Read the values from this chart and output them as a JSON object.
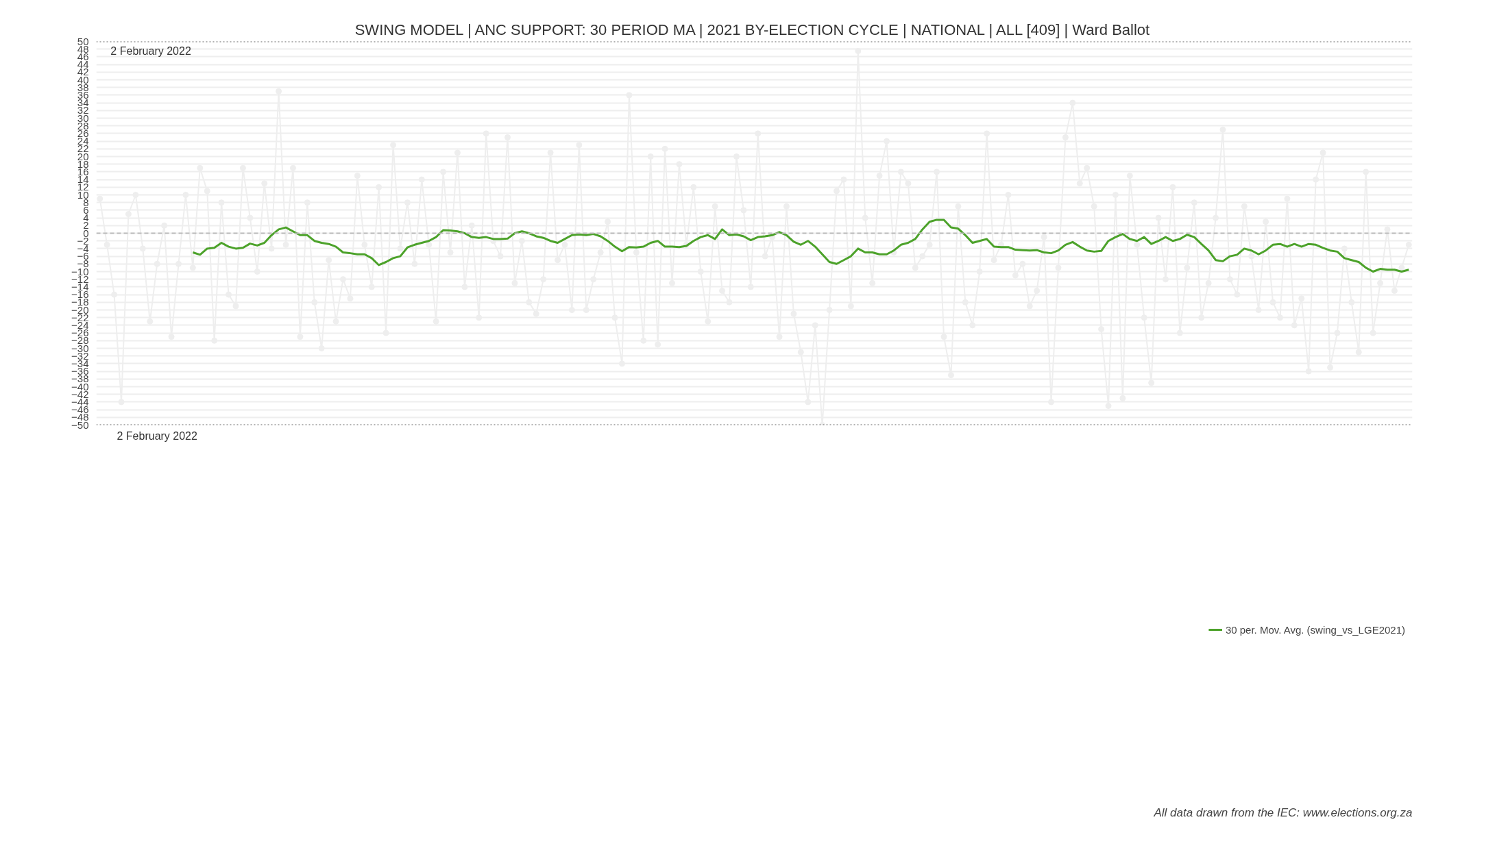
{
  "chart_data": {
    "type": "line",
    "title": "SWING MODEL | ANC SUPPORT: 30 PERIOD MA | 2021 BY-ELECTION CYCLE | NATIONAL | ALL [409] | Ward Ballot",
    "categories": [
      null,
      null,
      null,
      null,
      null,
      null,
      null,
      null,
      null,
      null,
      null,
      null,
      null,
      null,
      null,
      null,
      null,
      null,
      null,
      null,
      null,
      null,
      null,
      null,
      null,
      null,
      null,
      null,
      null,
      null,
      null,
      null,
      null,
      null,
      null,
      null,
      null,
      null,
      null,
      null,
      null,
      null,
      null,
      null,
      null,
      null,
      null,
      null,
      null,
      null,
      null,
      null,
      null,
      null,
      null,
      null,
      null,
      null,
      null,
      null,
      null,
      null,
      null,
      null,
      null,
      null,
      null,
      null,
      null,
      null,
      null,
      null,
      null,
      null,
      null,
      null,
      null,
      null,
      null,
      null,
      null,
      null,
      null,
      null,
      null,
      null,
      null,
      null,
      null,
      null,
      null,
      null,
      null,
      null,
      null,
      null,
      null,
      null,
      null,
      null,
      null,
      null,
      null,
      null,
      null,
      null,
      null,
      null,
      null,
      null,
      null,
      null,
      null,
      null,
      null,
      null,
      null,
      null,
      null,
      null,
      null,
      null,
      null,
      null,
      null,
      null,
      null,
      null,
      null,
      null,
      null,
      null,
      null,
      null,
      null,
      null,
      null,
      null,
      null,
      null,
      null,
      null,
      null,
      null,
      null,
      null,
      null,
      null,
      null,
      null,
      null,
      null,
      null,
      null,
      null,
      null,
      null,
      null,
      null,
      null,
      null,
      null,
      null,
      null,
      null,
      null,
      null,
      null,
      null,
      null,
      null,
      null,
      null,
      null,
      null,
      null,
      null,
      null,
      null,
      null,
      null,
      null,
      null,
      null
    ],
    "series": [
      {
        "color": "#eeeeee",
        "marker": "circle",
        "values": [
          9,
          -3,
          -16,
          -44,
          5,
          10,
          -4,
          -23,
          -8,
          2,
          -27,
          -8,
          10,
          -9,
          17,
          11,
          -28,
          8,
          -16,
          -19,
          17,
          4,
          -10,
          13,
          -4,
          37,
          -3,
          17,
          -27,
          8,
          -18,
          -30,
          -7,
          -23,
          -12,
          -17,
          15,
          -3,
          -14,
          12,
          -26,
          23,
          -4,
          8,
          -8,
          14,
          -3,
          -23,
          16,
          -5,
          21,
          -14,
          2,
          -22,
          26,
          -2,
          -6,
          25,
          -13,
          -2,
          -18,
          -21,
          -12,
          21,
          -7,
          -3,
          -20,
          23,
          -20,
          -12,
          -5,
          3,
          -22,
          -34,
          36,
          -5,
          -28,
          20,
          -29,
          22,
          -13,
          18,
          -3,
          12,
          -10,
          -23,
          7,
          -15,
          -18,
          20,
          6,
          -14,
          26,
          -6,
          -1,
          -27,
          7,
          -21,
          -31,
          -44,
          -24,
          -50,
          -20,
          11,
          14,
          -19,
          47.5,
          4,
          -13,
          15,
          24,
          -5,
          16,
          13,
          -9,
          -6,
          -3,
          16,
          -27,
          -37,
          7,
          -18,
          -24,
          -10,
          26,
          -7,
          -3,
          10,
          -11,
          -8,
          -19,
          -15,
          -1,
          -44,
          -9,
          25,
          34,
          13,
          17,
          7,
          -25,
          -45,
          10,
          -43,
          15,
          -3,
          -22,
          -39,
          4,
          -12,
          12,
          -26,
          -9,
          8,
          -22,
          -13,
          4,
          27,
          -12,
          -16,
          7,
          -6,
          -20,
          3,
          -18,
          -22,
          9,
          -24,
          -17,
          -36,
          14,
          21,
          -35,
          -26,
          -4,
          -18,
          -31,
          16,
          -26,
          -13,
          1,
          -15,
          -9,
          -3
        ]
      },
      {
        "name": "30 per. Mov. Avg. (swing_vs_LGE2021)",
        "color": "#4ca22a",
        "marker": "none",
        "values": [
          null,
          null,
          null,
          null,
          null,
          null,
          null,
          null,
          null,
          null,
          null,
          null,
          null,
          -5,
          -5.6,
          -4,
          -3.8,
          -2.5,
          -3.5,
          -4,
          -3.8,
          -2.7,
          -3.2,
          -2.5,
          -0.5,
          1,
          1.5,
          0.5,
          -0.5,
          -0.5,
          -2,
          -2.5,
          -2.8,
          -3.5,
          -5,
          -5.2,
          -5.5,
          -5.5,
          -6.5,
          -8.3,
          -7.5,
          -6.5,
          -6,
          -3.7,
          -3,
          -2.5,
          -2,
          -1,
          0.8,
          0.7,
          0.5,
          0,
          -1,
          -1.2,
          -1,
          -1.5,
          -1.5,
          -1.4,
          0,
          0.5,
          0,
          -0.8,
          -1.2,
          -2,
          -2.5,
          -1.5,
          -0.5,
          -0.3,
          -0.5,
          -0.2,
          -0.8,
          -2,
          -3.5,
          -4.7,
          -3.6,
          -3.7,
          -3.5,
          -2.5,
          -2,
          -3.5,
          -3.5,
          -3.6,
          -3.3,
          -2,
          -1,
          -0.5,
          -1.5,
          1,
          -0.5,
          -0.3,
          -0.8,
          -1.8,
          -1,
          -0.8,
          -0.5,
          0.3,
          -0.5,
          -2.2,
          -3,
          -2,
          -3.5,
          -5.5,
          -7.5,
          -8,
          -7,
          -6,
          -4,
          -5,
          -5,
          -5.5,
          -5.5,
          -4.5,
          -3,
          -2.5,
          -1.5,
          1,
          3,
          3.5,
          3.5,
          1.5,
          1.2,
          -0.5,
          -2.5,
          -2,
          -1.5,
          -3.5,
          -3.6,
          -3.6,
          -4.3,
          -4.4,
          -4.5,
          -4.4,
          -5,
          -5.2,
          -4.5,
          -3,
          -2.3,
          -3.5,
          -4.5,
          -4.8,
          -4.6,
          -2,
          -1,
          -0.2,
          -1.5,
          -2,
          -1,
          -2.8,
          -2,
          -1,
          -2,
          -1.5,
          -0.4,
          -1,
          -2.8,
          -4.5,
          -7,
          -7.3,
          -6,
          -5.6,
          -4,
          -4.5,
          -5.5,
          -4.5,
          -3,
          -2.8,
          -3.5,
          -2.8,
          -3.5,
          -2.8,
          -3,
          -3.8,
          -4.5,
          -4.8,
          -6.5,
          -7,
          -7.5,
          -9,
          -10,
          -9.3,
          -9.5,
          -9.5,
          -10,
          -9.5
        ]
      }
    ],
    "ylim": [
      -50,
      50
    ],
    "yticks": [
      -50,
      -48,
      -46,
      -44,
      -42,
      -40,
      -38,
      -36,
      -34,
      -32,
      -30,
      -28,
      -26,
      -24,
      -22,
      -20,
      -18,
      -16,
      -14,
      -12,
      -10,
      -8,
      -6,
      -4,
      -2,
      0,
      2,
      4,
      6,
      8,
      10,
      12,
      14,
      16,
      18,
      20,
      22,
      24,
      26,
      28,
      30,
      32,
      34,
      36,
      38,
      40,
      42,
      44,
      46,
      48,
      50
    ],
    "grid": "y",
    "legend": "bottom",
    "tick_labels": "y",
    "ref_lines": [
      {
        "axis": "y",
        "value": 0,
        "color": "#bbbbbb",
        "line_style": "dashed"
      },
      {
        "axis": "y",
        "value": 50,
        "color": "#666666",
        "line_style": "dotted"
      },
      {
        "axis": "y",
        "value": -50,
        "color": "#666666",
        "line_style": "dotted"
      }
    ],
    "annotations": [
      "2 February 2022",
      "2 February 2022",
      "All data drawn from the IEC: www.elections.org.za"
    ]
  }
}
